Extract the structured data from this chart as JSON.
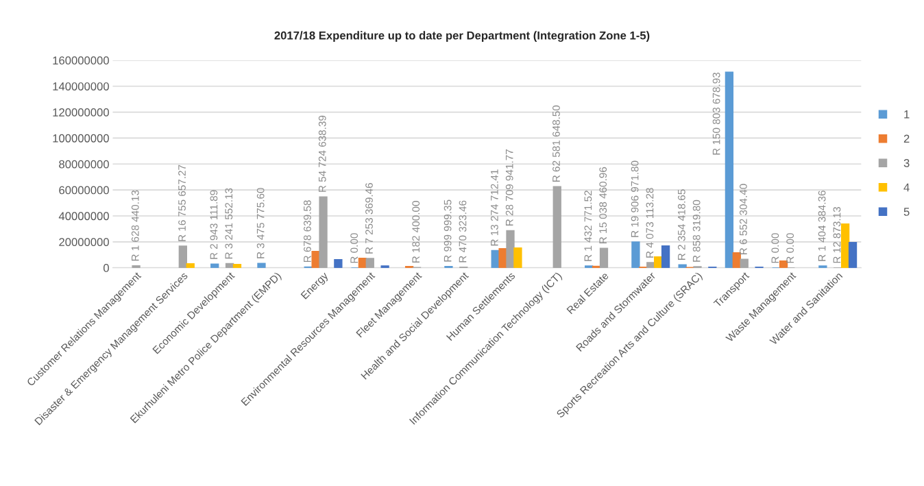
{
  "chart_data": {
    "type": "bar",
    "title": "2017/18 Expenditure up to date per Department (Integration Zone 1-5)",
    "categories": [
      "Customer Relations Management",
      "Disaster & Emergency Management Services",
      "Economic Development",
      "Ekurhuleni Metro Police Department (EMPD)",
      "Energy",
      "Environmental Resources Management",
      "Fleet Management",
      "Health and Social Development",
      "Human Settlements",
      "Information Communication Technology (ICT)",
      "Real Estate",
      "Roads and Stormwater",
      "Sports Recreation Arts and Culture (SRAC)",
      "Transport",
      "Waste Management",
      "Water and Sanitation"
    ],
    "series": [
      {
        "name": "1",
        "color": "#5b9bd5",
        "values": [
          null,
          null,
          2943111.89,
          3475775.6,
          678639.58,
          0.0,
          null,
          999999.35,
          13274712.41,
          null,
          1432771.52,
          19906971.8,
          2354418.65,
          150803678.93,
          0.0,
          1404384.36
        ],
        "value_labels": [
          null,
          null,
          "R 2 943 111.89",
          "R 3 475 775.60",
          "R 678 639.58",
          "R 0.00",
          null,
          "R 999 999.35",
          "R 13 274 712.41",
          null,
          "R 1 432 771.52",
          "R 19 906 971.80",
          "R 2 354 418.65",
          "R 150 803 678.93",
          "R 0.00",
          "R 1 404 384.36"
        ]
      },
      {
        "name": "2",
        "color": "#ed7d31",
        "values": [
          null,
          null,
          null,
          null,
          12700000,
          7400000,
          1000000,
          null,
          14800000,
          null,
          1200000,
          500000,
          300000,
          11600000,
          5300000,
          null
        ]
      },
      {
        "name": "3",
        "color": "#a5a5a5",
        "values": [
          1628440.13,
          16755657.27,
          3241552.13,
          null,
          54724638.39,
          7253369.46,
          182400.0,
          470323.46,
          28709941.77,
          62581648.5,
          15038460.96,
          4073113.28,
          858319.8,
          6552304.4,
          0.0,
          12873.13
        ],
        "value_labels": [
          "R 1 628 440.13",
          "R 16 755 657.27",
          "R 3 241 552.13",
          null,
          "R 54 724 638.39",
          "R 7 253 369.46",
          "R 182 400.00",
          "R 470 323.46",
          "R 28 709 941.77",
          "R 62 581 648.50",
          "R 15 038 460.96",
          "R 4 073 113.28",
          "R 858 319.80",
          "R 6 552 304.40",
          "R 0.00",
          "R 12 873.13"
        ]
      },
      {
        "name": "4",
        "color": "#ffc000",
        "values": [
          null,
          3200000,
          2600000,
          null,
          null,
          null,
          null,
          null,
          15300000,
          null,
          null,
          8400000,
          null,
          null,
          null,
          33800000
        ]
      },
      {
        "name": "5",
        "color": "#4472c4",
        "values": [
          null,
          null,
          null,
          null,
          6300000,
          1500000,
          null,
          null,
          null,
          null,
          null,
          16900000,
          500000,
          500000,
          null,
          19500000
        ]
      }
    ],
    "ylim": [
      0,
      160000000
    ],
    "yticks": [
      0,
      20000000,
      40000000,
      60000000,
      80000000,
      100000000,
      120000000,
      140000000,
      160000000
    ],
    "grid": "y",
    "legend": "right"
  }
}
